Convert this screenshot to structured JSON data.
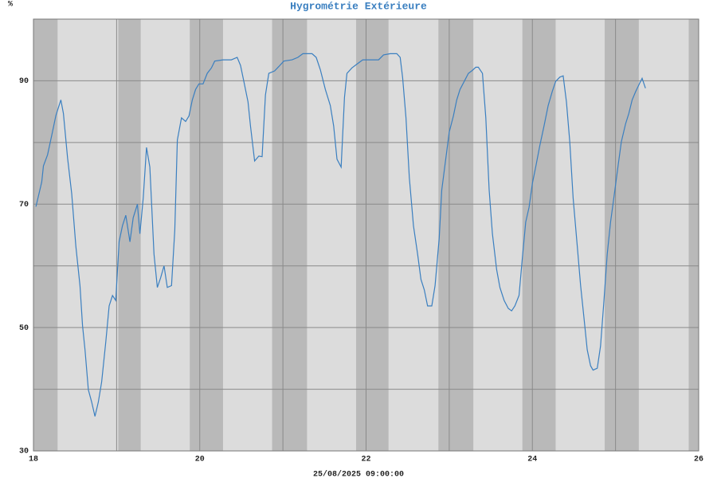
{
  "chart_data": {
    "type": "line",
    "title": "Hygrométrie Extérieure",
    "y_unit": "%",
    "x_label": "25/08/2025 09:00:00",
    "xlim": [
      18,
      26
    ],
    "xticks": [
      18,
      20,
      22,
      24,
      26
    ],
    "xminorticks": [
      19,
      21,
      23,
      25
    ],
    "ylim": [
      30,
      100
    ],
    "yticks": [
      30,
      50,
      70,
      90
    ],
    "yminorticks": [
      40,
      60,
      80
    ],
    "grid": true,
    "shaded_periods": [
      [
        18,
        18.29
      ],
      [
        19.02,
        19.29
      ],
      [
        19.88,
        20.28
      ],
      [
        20.87,
        21.29
      ],
      [
        21.88,
        22.27
      ],
      [
        22.87,
        23.29
      ],
      [
        23.88,
        24.28
      ],
      [
        24.87,
        25.28
      ],
      [
        25.88,
        26
      ]
    ],
    "series": [
      {
        "color": "#3a7fc0",
        "x": [
          18.03,
          18.1,
          18.12,
          18.17,
          18.22,
          18.27,
          18.33,
          18.36,
          18.41,
          18.46,
          18.51,
          18.56,
          18.59,
          18.62,
          18.66,
          18.7,
          18.74,
          18.78,
          18.82,
          18.87,
          18.91,
          18.95,
          18.99,
          19.03,
          19.07,
          19.11,
          19.16,
          19.2,
          19.25,
          19.28,
          19.32,
          19.36,
          19.4,
          19.45,
          19.49,
          19.53,
          19.57,
          19.61,
          19.66,
          19.7,
          19.73,
          19.78,
          19.83,
          19.87,
          19.91,
          19.95,
          19.99,
          20.04,
          20.09,
          20.14,
          20.18,
          20.28,
          20.38,
          20.45,
          20.49,
          20.53,
          20.58,
          20.61,
          20.66,
          20.71,
          20.75,
          20.79,
          20.83,
          20.9,
          20.95,
          21.01,
          21.11,
          21.18,
          21.24,
          21.35,
          21.4,
          21.45,
          21.51,
          21.57,
          21.61,
          21.65,
          21.7,
          21.74,
          21.77,
          21.83,
          21.89,
          21.96,
          22.15,
          22.21,
          22.29,
          22.37,
          22.41,
          22.44,
          22.48,
          22.52,
          22.57,
          22.62,
          22.66,
          22.7,
          22.74,
          22.79,
          22.83,
          22.88,
          22.91,
          22.96,
          23.0,
          23.05,
          23.09,
          23.13,
          23.18,
          23.23,
          23.27,
          23.32,
          23.35,
          23.4,
          23.44,
          23.48,
          23.52,
          23.57,
          23.61,
          23.66,
          23.71,
          23.75,
          23.79,
          23.84,
          23.88,
          23.92,
          23.96,
          24.0,
          24.04,
          24.09,
          24.14,
          24.19,
          24.24,
          24.28,
          24.33,
          24.37,
          24.41,
          24.45,
          24.49,
          24.54,
          24.58,
          24.62,
          24.66,
          24.7,
          24.73,
          24.78,
          24.82,
          24.86,
          24.9,
          24.94,
          24.98,
          25.03,
          25.07,
          25.12,
          25.16,
          25.2,
          25.24,
          25.29,
          25.32,
          25.36
        ],
        "values": [
          69.6,
          73.6,
          76.2,
          78,
          81.2,
          84.4,
          86.9,
          84.7,
          77.5,
          71.7,
          63.2,
          56.8,
          50.3,
          46.4,
          39.9,
          37.9,
          35.6,
          37.9,
          41.2,
          47.7,
          53.5,
          55.2,
          54.4,
          63.9,
          66.5,
          68.2,
          63.9,
          67.8,
          70,
          65.2,
          71,
          79.2,
          76,
          61.9,
          56.5,
          58.1,
          60,
          56.5,
          56.8,
          65.8,
          80.4,
          84,
          83.4,
          84.3,
          86.9,
          88.6,
          89.5,
          89.5,
          91.2,
          92.1,
          93.2,
          93.4,
          93.4,
          93.8,
          92.5,
          89.9,
          86.6,
          82.7,
          77,
          77.8,
          77.7,
          87.7,
          91.2,
          91.6,
          92.3,
          93.2,
          93.4,
          93.8,
          94.4,
          94.4,
          93.8,
          91.8,
          88.6,
          86,
          82.7,
          77.3,
          76,
          87.3,
          91.2,
          92.1,
          92.7,
          93.4,
          93.4,
          94.2,
          94.4,
          94.4,
          93.8,
          90.5,
          84,
          74.3,
          66.5,
          61.9,
          57.8,
          56.1,
          53.5,
          53.5,
          56.8,
          64.5,
          72.3,
          77.5,
          81.7,
          84.3,
          86.9,
          88.6,
          89.9,
          91.2,
          91.6,
          92.2,
          92.2,
          91.2,
          84,
          72.3,
          65.2,
          59.4,
          56.5,
          54.4,
          53.1,
          52.7,
          53.5,
          55.2,
          61.3,
          67.1,
          69.5,
          73.4,
          76,
          79.5,
          82.7,
          86,
          88.3,
          89.9,
          90.6,
          90.8,
          86.6,
          80.1,
          71,
          63.2,
          56.8,
          51.6,
          46.4,
          43.8,
          43.1,
          43.4,
          47,
          54.2,
          61.9,
          67.1,
          71,
          76.2,
          80.1,
          83,
          84.7,
          86.9,
          88.2,
          89.6,
          90.4,
          88.8
        ]
      }
    ]
  }
}
